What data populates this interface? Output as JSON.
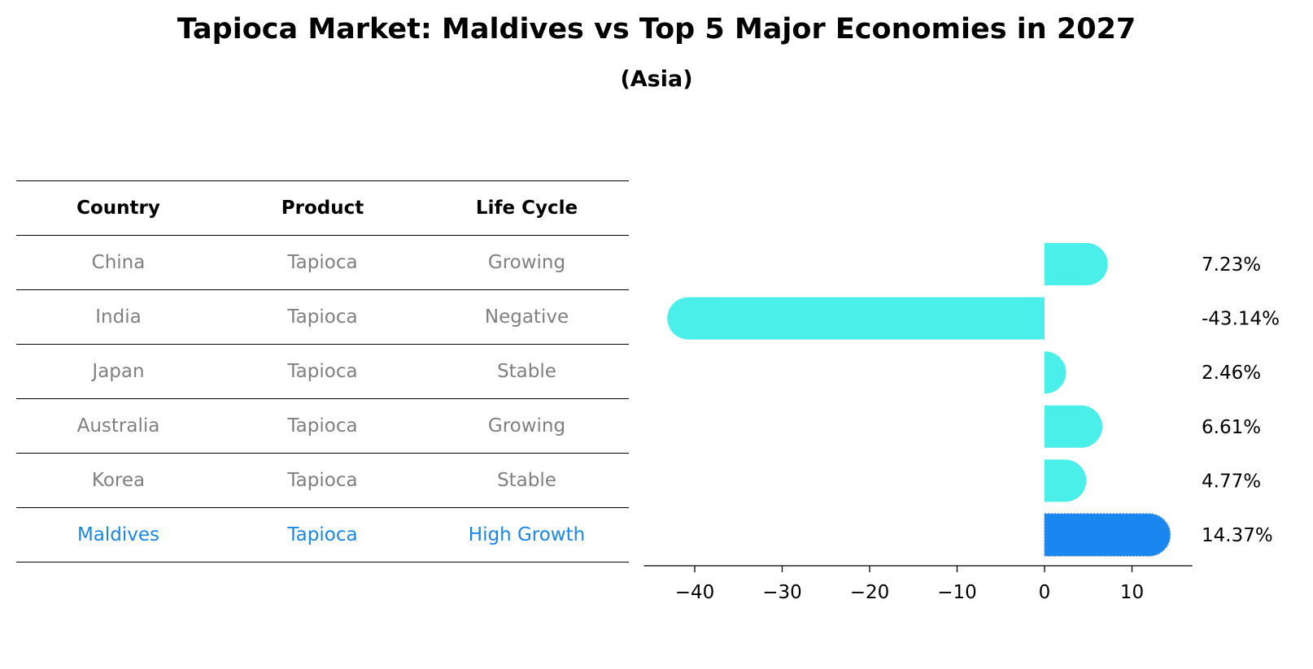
{
  "header": {
    "title": "Tapioca Market: Maldives vs Top 5 Major Economies in 2027",
    "subtitle": "(Asia)"
  },
  "table": {
    "columns": [
      "Country",
      "Product",
      "Life Cycle"
    ],
    "rows": [
      {
        "country": "China",
        "product": "Tapioca",
        "life_cycle": "Growing"
      },
      {
        "country": "India",
        "product": "Tapioca",
        "life_cycle": "Negative"
      },
      {
        "country": "Japan",
        "product": "Tapioca",
        "life_cycle": "Stable"
      },
      {
        "country": "Australia",
        "product": "Tapioca",
        "life_cycle": "Growing"
      },
      {
        "country": "Korea",
        "product": "Tapioca",
        "life_cycle": "Stable"
      },
      {
        "country": "Maldives",
        "product": "Tapioca",
        "life_cycle": "High Growth"
      }
    ],
    "highlight_color": "#1a86e6",
    "text_color": "#808080"
  },
  "chart_data": {
    "type": "bar",
    "orientation": "horizontal",
    "categories": [
      "China",
      "India",
      "Japan",
      "Australia",
      "Korea",
      "Maldives"
    ],
    "values": [
      7.23,
      -43.14,
      2.46,
      6.61,
      4.77,
      14.37
    ],
    "value_labels": [
      "7.23%",
      "-43.14%",
      "2.46%",
      "6.61%",
      "4.77%",
      "14.37%"
    ],
    "xticks": [
      -40,
      -30,
      -20,
      -10,
      0,
      10
    ],
    "xtick_labels": [
      "−40",
      "−30",
      "−20",
      "−10",
      "0",
      "10"
    ],
    "xlim": [
      -46,
      17
    ],
    "xlabel": "",
    "ylabel": "",
    "grid": false,
    "bar_color": "#4aefea",
    "highlight_color": "#1a86ef",
    "highlight_index": 5
  }
}
